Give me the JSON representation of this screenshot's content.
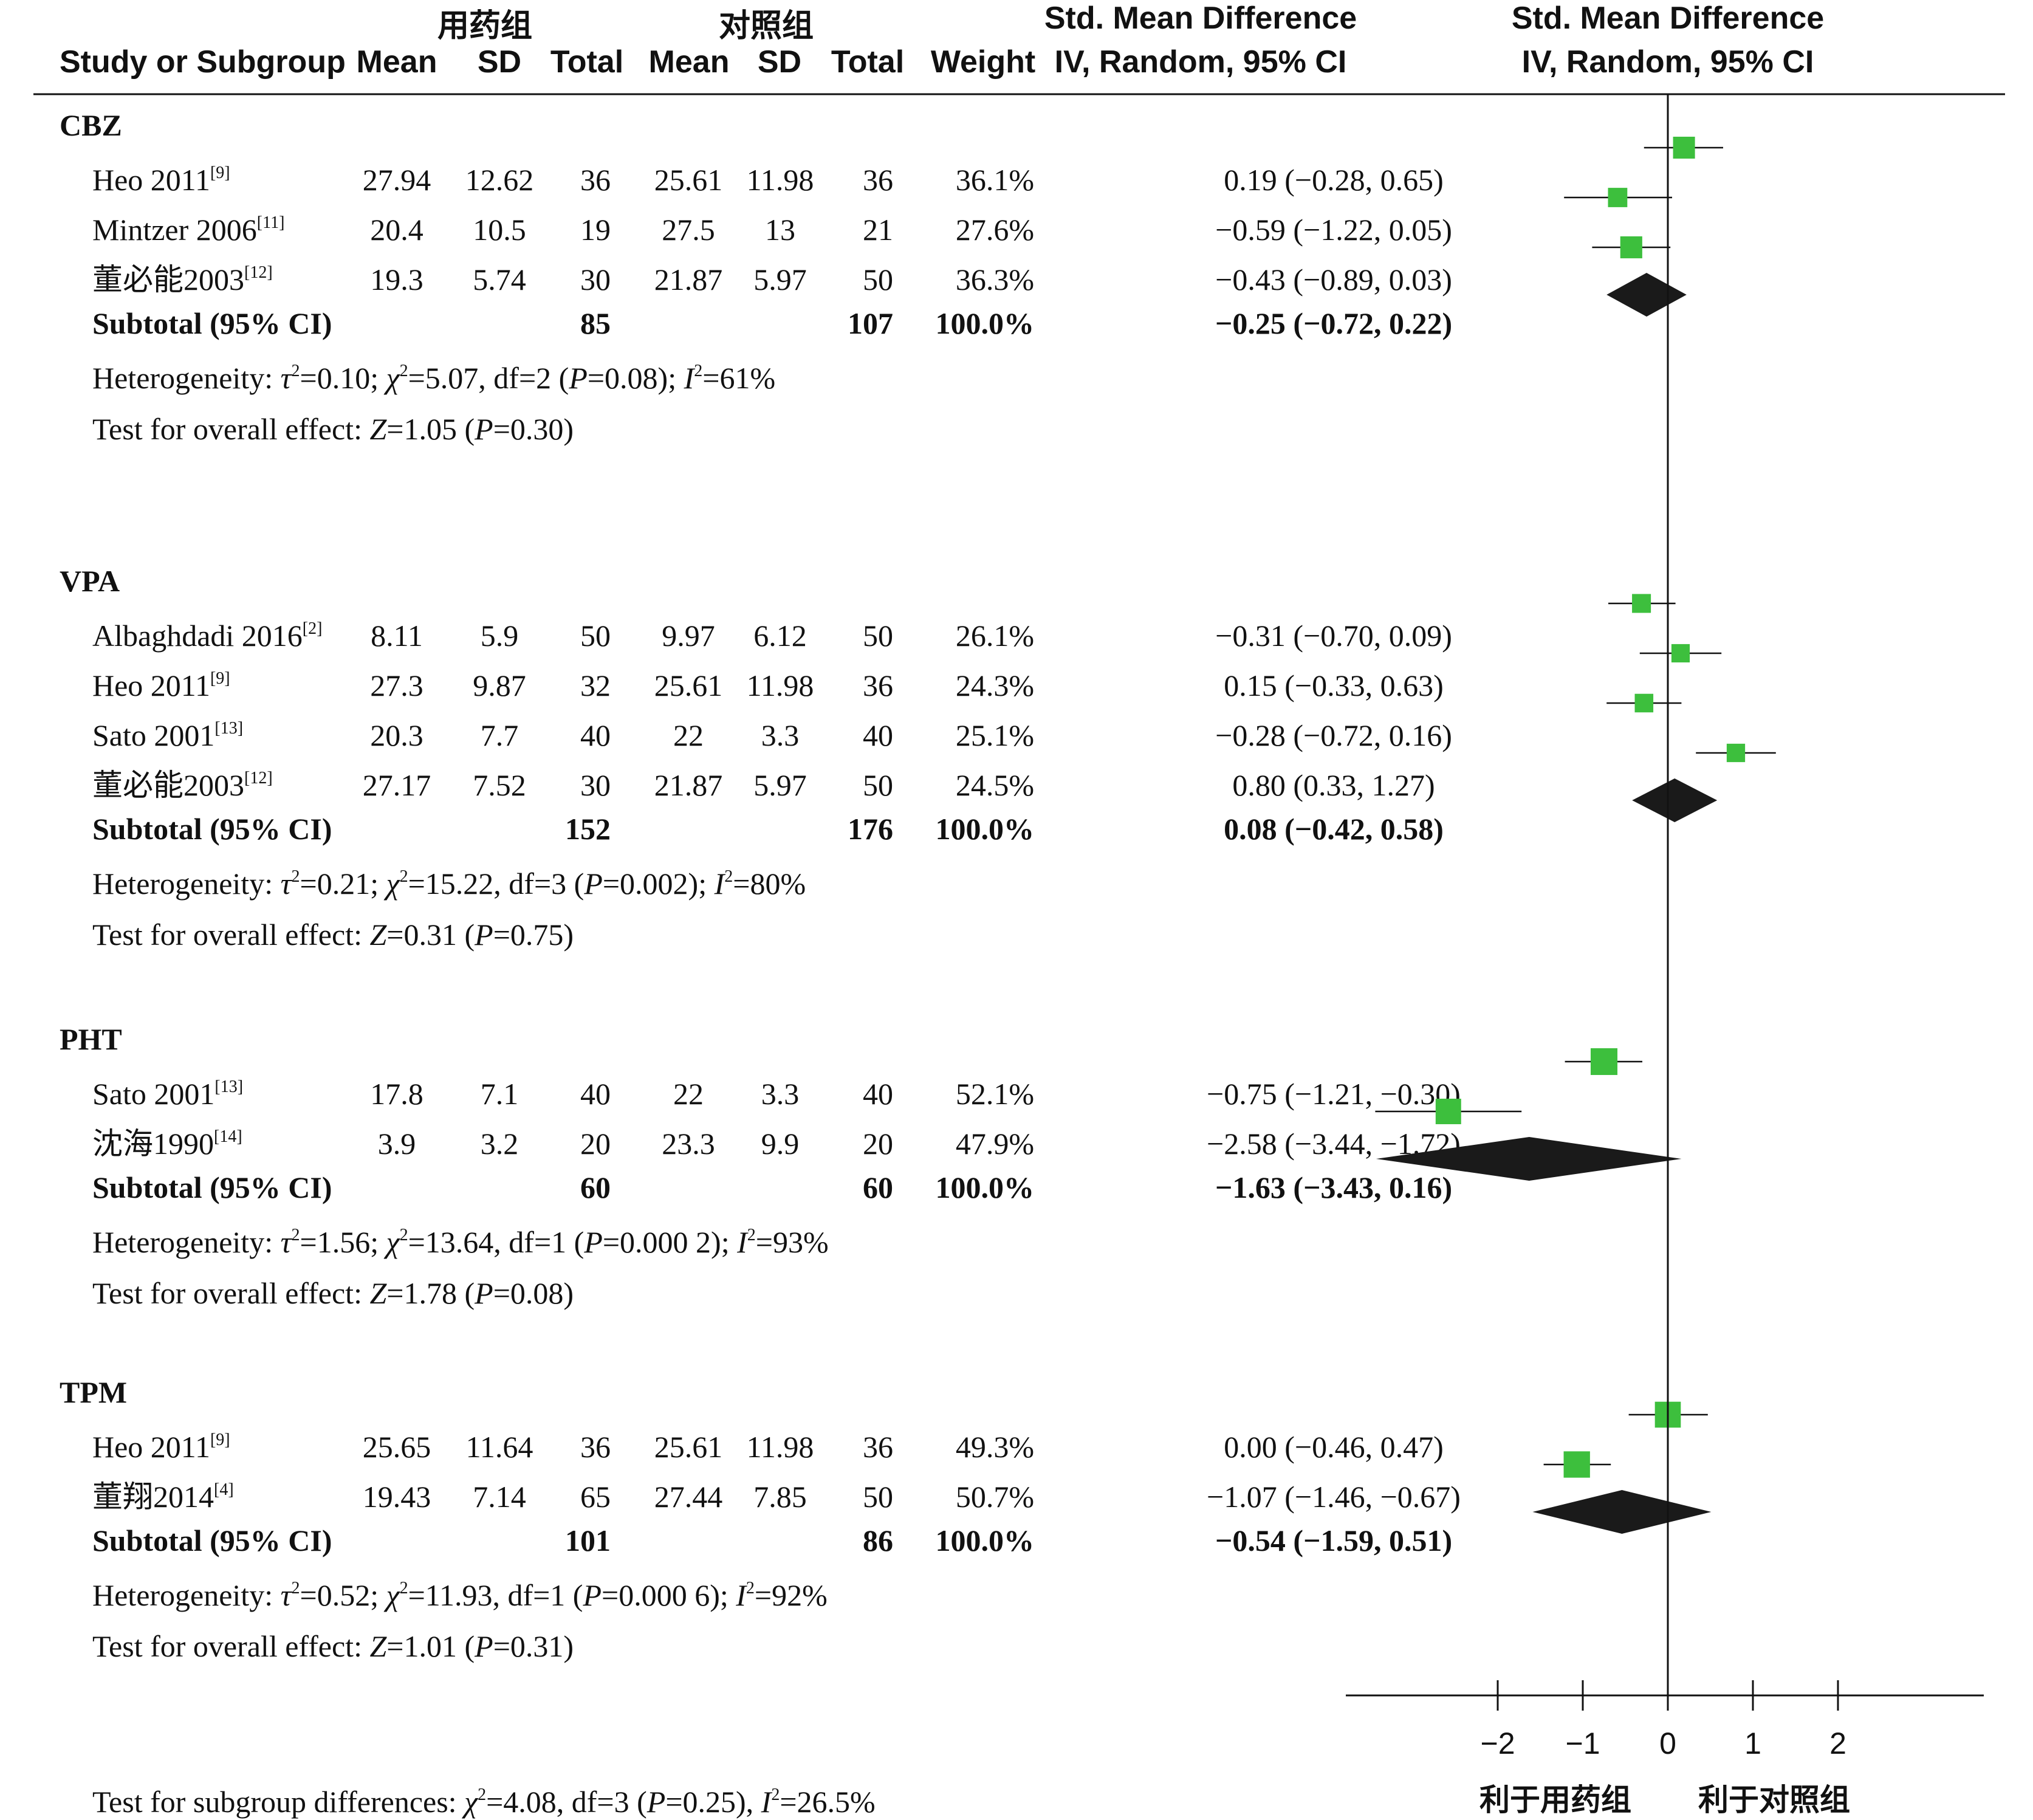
{
  "header": {
    "treat_group": "用药组",
    "control_group": "对照组",
    "study_col": "Study or Subgroup",
    "mean": "Mean",
    "sd": "SD",
    "total": "Total",
    "weight": "Weight",
    "smd_title": "Std. Mean Difference",
    "smd_method": "IV, Random, 95% CI"
  },
  "chart_data": {
    "type": "forest",
    "x_ticks": [
      "−2",
      "−1",
      "0",
      "1",
      "2"
    ],
    "x_tick_values": [
      -2,
      -1,
      0,
      1,
      2
    ],
    "xlim": [
      -3.7,
      3.8
    ],
    "favors_left": "利于用药组",
    "favors_right": "利于对照组",
    "square_color": "#3dbf3d",
    "diamond_color": "#1a1a1a",
    "groups": [
      {
        "name": "CBZ",
        "studies": [
          {
            "study": "Heo 2011",
            "ref": "[9]",
            "t_mean": "27.94",
            "t_sd": "12.62",
            "t_total": "36",
            "c_mean": "25.61",
            "c_sd": "11.98",
            "c_total": "36",
            "weight": "36.1%",
            "ci_text": "0.19 (−0.28, 0.65)",
            "est": 0.19,
            "lo": -0.28,
            "hi": 0.65,
            "w": 36.1
          },
          {
            "study": "Mintzer 2006",
            "ref": "[11]",
            "t_mean": "20.4",
            "t_sd": "10.5",
            "t_total": "19",
            "c_mean": "27.5",
            "c_sd": "13",
            "c_total": "21",
            "weight": "27.6%",
            "ci_text": "−0.59 (−1.22, 0.05)",
            "est": -0.59,
            "lo": -1.22,
            "hi": 0.05,
            "w": 27.6
          },
          {
            "study": "董必能2003",
            "ref": "[12]",
            "t_mean": "19.3",
            "t_sd": "5.74",
            "t_total": "30",
            "c_mean": "21.87",
            "c_sd": "5.97",
            "c_total": "50",
            "weight": "36.3%",
            "ci_text": "−0.43 (−0.89, 0.03)",
            "est": -0.43,
            "lo": -0.89,
            "hi": 0.03,
            "w": 36.3
          }
        ],
        "subtotal": {
          "label": "Subtotal (95% CI)",
          "t_total": "85",
          "c_total": "107",
          "weight": "100.0%",
          "ci_text": "−0.25 (−0.72, 0.22)",
          "est": -0.25,
          "lo": -0.72,
          "hi": 0.22
        },
        "heterogeneity": {
          "prefix": "Heterogeneity: ",
          "tau_sym": "τ",
          "tau": "=0.10; ",
          "chi_sym": "χ",
          "chi": "=5.07, df=2 (",
          "p_sym": "P",
          "p": "=0.08); ",
          "i_sym": "I",
          "i": "=61%"
        },
        "overall": {
          "prefix": "Test for overall effect: ",
          "z_sym": "Z",
          "z": "=1.05 (",
          "p_sym": "P",
          "p": "=0.30)"
        }
      },
      {
        "name": "VPA",
        "studies": [
          {
            "study": "Albaghdadi 2016",
            "ref": "[2]",
            "t_mean": "8.11",
            "t_sd": "5.9",
            "t_total": "50",
            "c_mean": "9.97",
            "c_sd": "6.12",
            "c_total": "50",
            "weight": "26.1%",
            "ci_text": "−0.31 (−0.70, 0.09)",
            "est": -0.31,
            "lo": -0.7,
            "hi": 0.09,
            "w": 26.1
          },
          {
            "study": "Heo 2011",
            "ref": "[9]",
            "t_mean": "27.3",
            "t_sd": "9.87",
            "t_total": "32",
            "c_mean": "25.61",
            "c_sd": "11.98",
            "c_total": "36",
            "weight": "24.3%",
            "ci_text": "0.15 (−0.33, 0.63)",
            "est": 0.15,
            "lo": -0.33,
            "hi": 0.63,
            "w": 24.3
          },
          {
            "study": "Sato 2001",
            "ref": "[13]",
            "t_mean": "20.3",
            "t_sd": "7.7",
            "t_total": "40",
            "c_mean": "22",
            "c_sd": "3.3",
            "c_total": "40",
            "weight": "25.1%",
            "ci_text": "−0.28 (−0.72, 0.16)",
            "est": -0.28,
            "lo": -0.72,
            "hi": 0.16,
            "w": 25.1
          },
          {
            "study": "董必能2003",
            "ref": "[12]",
            "t_mean": "27.17",
            "t_sd": "7.52",
            "t_total": "30",
            "c_mean": "21.87",
            "c_sd": "5.97",
            "c_total": "50",
            "weight": "24.5%",
            "ci_text": "0.80 (0.33, 1.27)",
            "est": 0.8,
            "lo": 0.33,
            "hi": 1.27,
            "w": 24.5
          }
        ],
        "subtotal": {
          "label": "Subtotal (95% CI)",
          "t_total": "152",
          "c_total": "176",
          "weight": "100.0%",
          "ci_text": "0.08 (−0.42, 0.58)",
          "est": 0.08,
          "lo": -0.42,
          "hi": 0.58
        },
        "heterogeneity": {
          "prefix": "Heterogeneity: ",
          "tau_sym": "τ",
          "tau": "=0.21; ",
          "chi_sym": "χ",
          "chi": "=15.22, df=3 (",
          "p_sym": "P",
          "p": "=0.002); ",
          "i_sym": "I",
          "i": "=80%"
        },
        "overall": {
          "prefix": "Test for overall effect: ",
          "z_sym": "Z",
          "z": "=0.31 (",
          "p_sym": "P",
          "p": "=0.75)"
        }
      },
      {
        "name": "PHT",
        "studies": [
          {
            "study": "Sato 2001",
            "ref": "[13]",
            "t_mean": "17.8",
            "t_sd": "7.1",
            "t_total": "40",
            "c_mean": "22",
            "c_sd": "3.3",
            "c_total": "40",
            "weight": "52.1%",
            "ci_text": "−0.75 (−1.21, −0.30)",
            "est": -0.75,
            "lo": -1.21,
            "hi": -0.3,
            "w": 52.1
          },
          {
            "study": "沈海1990",
            "ref": "[14]",
            "t_mean": "3.9",
            "t_sd": "3.2",
            "t_total": "20",
            "c_mean": "23.3",
            "c_sd": "9.9",
            "c_total": "20",
            "weight": "47.9%",
            "ci_text": "−2.58 (−3.44, −1.72)",
            "est": -2.58,
            "lo": -3.44,
            "hi": -1.72,
            "w": 47.9
          }
        ],
        "subtotal": {
          "label": "Subtotal (95% CI)",
          "t_total": "60",
          "c_total": "60",
          "weight": "100.0%",
          "ci_text": "−1.63 (−3.43, 0.16)",
          "est": -1.63,
          "lo": -3.43,
          "hi": 0.16
        },
        "heterogeneity": {
          "prefix": "Heterogeneity: ",
          "tau_sym": "τ",
          "tau": "=1.56; ",
          "chi_sym": "χ",
          "chi": "=13.64, df=1 (",
          "p_sym": "P",
          "p": "=0.000 2); ",
          "i_sym": "I",
          "i": "=93%"
        },
        "overall": {
          "prefix": "Test for overall effect: ",
          "z_sym": "Z",
          "z": "=1.78 (",
          "p_sym": "P",
          "p": "=0.08)"
        }
      },
      {
        "name": "TPM",
        "studies": [
          {
            "study": "Heo 2011",
            "ref": "[9]",
            "t_mean": "25.65",
            "t_sd": "11.64",
            "t_total": "36",
            "c_mean": "25.61",
            "c_sd": "11.98",
            "c_total": "36",
            "weight": "49.3%",
            "ci_text": "0.00 (−0.46, 0.47)",
            "est": 0.0,
            "lo": -0.46,
            "hi": 0.47,
            "w": 49.3
          },
          {
            "study": "董翔2014",
            "ref": "[4]",
            "t_mean": "19.43",
            "t_sd": "7.14",
            "t_total": "65",
            "c_mean": "27.44",
            "c_sd": "7.85",
            "c_total": "50",
            "weight": "50.7%",
            "ci_text": "−1.07 (−1.46, −0.67)",
            "est": -1.07,
            "lo": -1.46,
            "hi": -0.67,
            "w": 50.7
          }
        ],
        "subtotal": {
          "label": "Subtotal (95% CI)",
          "t_total": "101",
          "c_total": "86",
          "weight": "100.0%",
          "ci_text": "−0.54 (−1.59, 0.51)",
          "est": -0.54,
          "lo": -1.59,
          "hi": 0.51
        },
        "heterogeneity": {
          "prefix": "Heterogeneity: ",
          "tau_sym": "τ",
          "tau": "=0.52; ",
          "chi_sym": "χ",
          "chi": "=11.93, df=1 (",
          "p_sym": "P",
          "p": "=0.000 6); ",
          "i_sym": "I",
          "i": "=92%"
        },
        "overall": {
          "prefix": "Test for overall effect: ",
          "z_sym": "Z",
          "z": "=1.01 (",
          "p_sym": "P",
          "p": "=0.31)"
        }
      }
    ],
    "subgroup_test": {
      "prefix": "Test for subgroup differences: ",
      "chi_sym": "χ",
      "chi": "=4.08, df=3 (",
      "p_sym": "P",
      "p": "=0.25), ",
      "i_sym": "I",
      "i": "=26.5%"
    }
  }
}
